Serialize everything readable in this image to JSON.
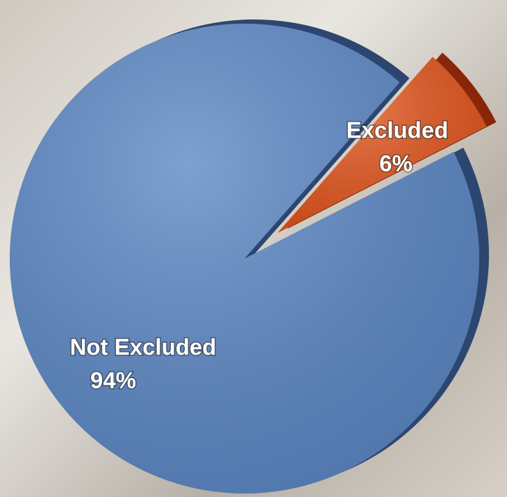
{
  "chart_data": {
    "type": "pie",
    "categories": [
      "Not Excluded",
      "Excluded"
    ],
    "values": [
      94,
      6
    ],
    "value_labels": [
      "94%",
      "6%"
    ],
    "colors": [
      "#5b87c5",
      "#e2541c"
    ],
    "depth_colors": [
      "#2c4670",
      "#8a2608"
    ]
  }
}
